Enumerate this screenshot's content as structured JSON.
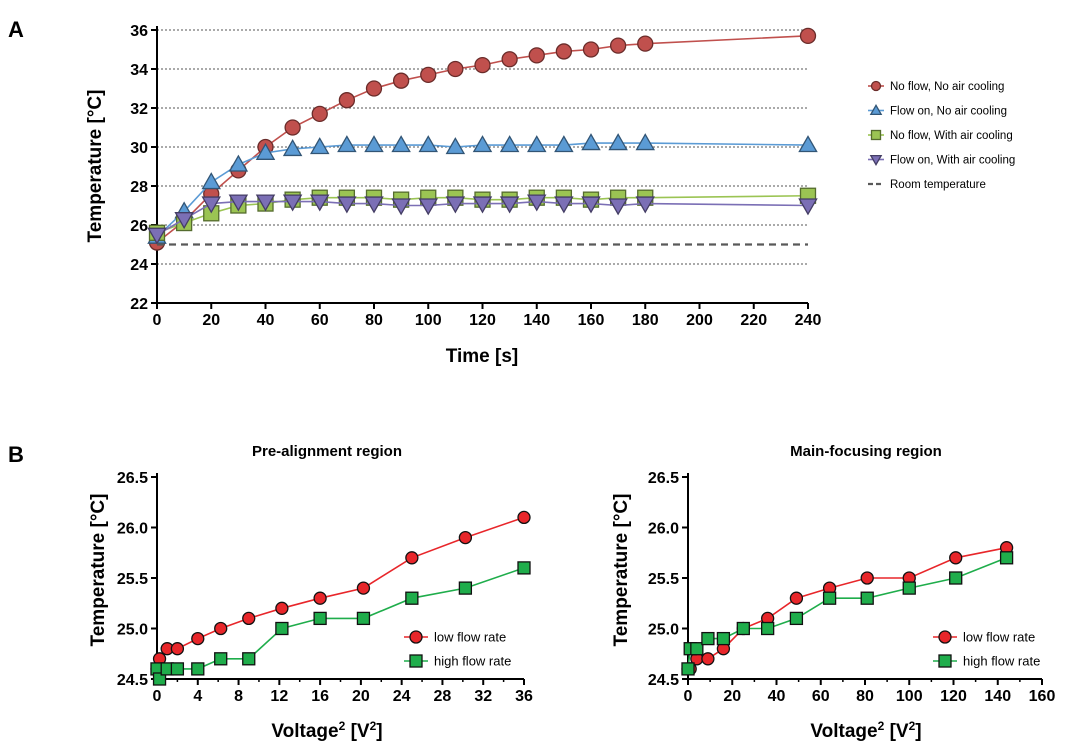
{
  "colors": {
    "red_dark": "#c0504d",
    "red_dark_fill": "#c0504d",
    "blue": "#5b9bd5",
    "green_light": "#9bc453",
    "purple": "#7b6fb5",
    "gray_dash": "#595959",
    "red_bright": "#e8262a",
    "green_bright": "#1fad4b"
  },
  "chart_data": [
    {
      "panel_label": "A",
      "type": "line",
      "title": "",
      "xlabel": "Time [s]",
      "ylabel": "Temperature [°C]",
      "xlim": [
        0,
        240
      ],
      "ylim": [
        22,
        36
      ],
      "xticks": [
        "0",
        "20",
        "40",
        "60",
        "80",
        "100",
        "120",
        "140",
        "160",
        "180",
        "200",
        "220",
        "240"
      ],
      "yticks": [
        "22",
        "24",
        "26",
        "28",
        "30",
        "32",
        "34",
        "36"
      ],
      "grid": "horizontal dotted",
      "legend_position": "right",
      "series": [
        {
          "name": "No flow, No air cooling",
          "marker": "circle",
          "color": "#c0504d",
          "x": [
            0,
            10,
            20,
            30,
            40,
            50,
            60,
            70,
            80,
            90,
            100,
            110,
            120,
            130,
            140,
            150,
            160,
            170,
            180,
            240
          ],
          "y": [
            25.1,
            26.2,
            27.6,
            28.8,
            30.0,
            31.0,
            31.7,
            32.4,
            33.0,
            33.4,
            33.7,
            34.0,
            34.2,
            34.5,
            34.7,
            34.9,
            35.0,
            35.2,
            35.3,
            35.7
          ]
        },
        {
          "name": "Flow on, No air cooling",
          "marker": "triangle-up",
          "color": "#5b9bd5",
          "x": [
            0,
            10,
            20,
            30,
            40,
            50,
            60,
            70,
            80,
            90,
            100,
            110,
            120,
            130,
            140,
            150,
            160,
            170,
            180,
            240
          ],
          "y": [
            25.4,
            26.7,
            28.2,
            29.1,
            29.7,
            29.9,
            30.0,
            30.1,
            30.1,
            30.1,
            30.1,
            30.0,
            30.1,
            30.1,
            30.1,
            30.1,
            30.2,
            30.2,
            30.2,
            30.1
          ]
        },
        {
          "name": "No flow, With air cooling",
          "marker": "square",
          "color": "#9bc453",
          "x": [
            0,
            10,
            20,
            30,
            40,
            50,
            60,
            70,
            80,
            90,
            100,
            110,
            120,
            130,
            140,
            150,
            160,
            170,
            180,
            240
          ],
          "y": [
            25.6,
            26.1,
            26.6,
            27.0,
            27.1,
            27.3,
            27.4,
            27.4,
            27.4,
            27.3,
            27.4,
            27.4,
            27.3,
            27.3,
            27.4,
            27.4,
            27.3,
            27.4,
            27.4,
            27.5
          ]
        },
        {
          "name": "Flow on, With air cooling",
          "marker": "triangle-down",
          "color": "#7b6fb5",
          "x": [
            0,
            10,
            20,
            30,
            40,
            50,
            60,
            70,
            80,
            90,
            100,
            110,
            120,
            130,
            140,
            150,
            160,
            170,
            180,
            240
          ],
          "y": [
            25.5,
            26.3,
            27.1,
            27.2,
            27.2,
            27.2,
            27.2,
            27.1,
            27.1,
            27.0,
            27.0,
            27.1,
            27.1,
            27.1,
            27.2,
            27.1,
            27.1,
            27.0,
            27.1,
            27.0
          ]
        },
        {
          "name": "Room temperature",
          "marker": "none",
          "dashed": true,
          "color": "#595959",
          "x": [
            0,
            240
          ],
          "y": [
            25.0,
            25.0
          ]
        }
      ]
    },
    {
      "panel_label": "B",
      "type": "line",
      "title": "Pre-alignment region",
      "xlabel": "Voltage² [V²]",
      "ylabel": "Temperature [°C]",
      "xlim": [
        0,
        36
      ],
      "ylim": [
        24.5,
        26.5
      ],
      "xticks": [
        "0",
        "4",
        "8",
        "12",
        "16",
        "20",
        "24",
        "28",
        "32",
        "36"
      ],
      "yticks": [
        "24.5",
        "25.0",
        "25.5",
        "26.0",
        "26.5"
      ],
      "legend_position": "bottom-right",
      "series": [
        {
          "name": "low flow rate",
          "marker": "circle",
          "color": "#e8262a",
          "x": [
            0,
            0.25,
            1,
            2,
            4,
            6.25,
            9,
            12.25,
            16,
            20.25,
            25,
            30.25,
            36
          ],
          "y": [
            24.6,
            24.7,
            24.8,
            24.8,
            24.9,
            25.0,
            25.1,
            25.2,
            25.3,
            25.4,
            25.7,
            25.9,
            26.1
          ]
        },
        {
          "name": "high flow rate",
          "marker": "square",
          "color": "#1fad4b",
          "x": [
            0,
            0.25,
            1,
            2,
            4,
            6.25,
            9,
            12.25,
            16,
            20.25,
            25,
            30.25,
            36
          ],
          "y": [
            24.6,
            24.5,
            24.6,
            24.6,
            24.6,
            24.7,
            24.7,
            25.0,
            25.1,
            25.1,
            25.3,
            25.4,
            25.6
          ]
        }
      ]
    },
    {
      "panel_label": "",
      "type": "line",
      "title": "Main-focusing region",
      "xlabel": "Voltage² [V²]",
      "ylabel": "Temperature [°C]",
      "xlim": [
        0,
        160
      ],
      "ylim": [
        24.5,
        26.5
      ],
      "xticks": [
        "0",
        "20",
        "40",
        "60",
        "80",
        "100",
        "120",
        "140",
        "160"
      ],
      "yticks": [
        "24.5",
        "25.0",
        "25.5",
        "26.0",
        "26.5"
      ],
      "legend_position": "bottom-right",
      "series": [
        {
          "name": "low flow rate",
          "marker": "circle",
          "color": "#e8262a",
          "x": [
            0,
            1,
            4,
            9,
            16,
            25,
            36,
            49,
            64,
            81,
            100,
            121,
            144
          ],
          "y": [
            24.6,
            24.6,
            24.7,
            24.7,
            24.8,
            25.0,
            25.1,
            25.3,
            25.4,
            25.5,
            25.5,
            25.7,
            25.8
          ]
        },
        {
          "name": "high flow rate",
          "marker": "square",
          "color": "#1fad4b",
          "x": [
            0,
            1,
            4,
            9,
            16,
            25,
            36,
            49,
            64,
            81,
            100,
            121,
            144
          ],
          "y": [
            24.6,
            24.8,
            24.8,
            24.9,
            24.9,
            25.0,
            25.0,
            25.1,
            25.3,
            25.3,
            25.4,
            25.5,
            25.7
          ]
        }
      ]
    }
  ]
}
